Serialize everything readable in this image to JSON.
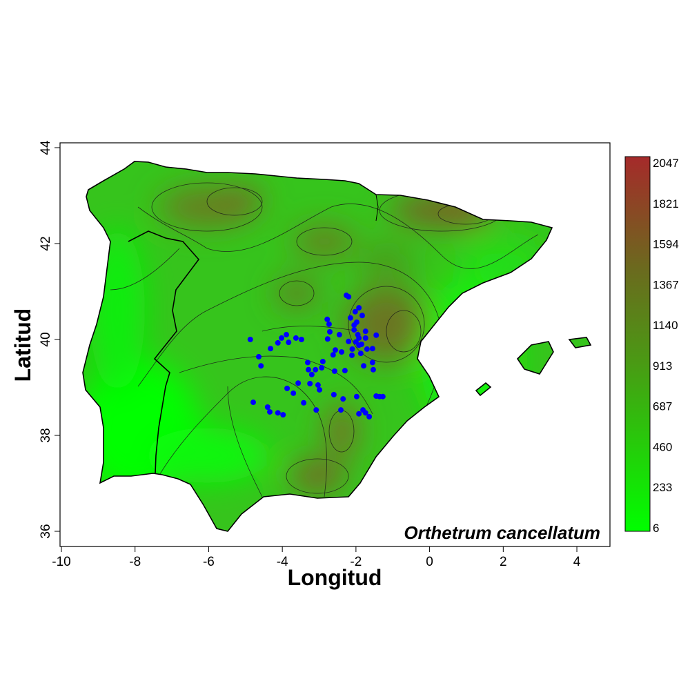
{
  "chart_data": {
    "type": "scatter",
    "title": "Orthetrum cancellatum",
    "xlabel": "Longitud",
    "ylabel": "Latitud",
    "xlim": [
      -10.05,
      4.9
    ],
    "ylim": [
      35.7,
      44.1
    ],
    "xticks": [
      -10,
      -8,
      -6,
      -4,
      -2,
      0,
      2,
      4
    ],
    "yticks": [
      36,
      38,
      40,
      42,
      44
    ],
    "grid": false,
    "background": "elevation raster of the Iberian Peninsula with contour lines",
    "point_color": "#0000ff",
    "colorbar": {
      "placement": "right",
      "low_color": "#00ff00",
      "high_color": "#a52a2a",
      "ticks": [
        2047,
        1821,
        1594,
        1367,
        1140,
        913,
        687,
        460,
        233,
        6
      ]
    },
    "contour_levels": [
      200,
      400,
      600,
      800,
      1000,
      1200,
      1400
    ],
    "points": [
      [
        -4.87,
        40.0
      ],
      [
        -4.64,
        39.64
      ],
      [
        -4.58,
        39.45
      ],
      [
        -4.32,
        39.81
      ],
      [
        -4.12,
        39.93
      ],
      [
        -4.02,
        40.03
      ],
      [
        -3.89,
        40.1
      ],
      [
        -3.83,
        39.94
      ],
      [
        -3.63,
        40.03
      ],
      [
        -3.48,
        40.0
      ],
      [
        -3.31,
        39.52
      ],
      [
        -3.29,
        39.37
      ],
      [
        -3.2,
        39.27
      ],
      [
        -3.1,
        39.37
      ],
      [
        -2.93,
        39.41
      ],
      [
        -2.9,
        39.54
      ],
      [
        -2.77,
        40.01
      ],
      [
        -2.71,
        40.16
      ],
      [
        -2.73,
        40.32
      ],
      [
        -2.78,
        40.42
      ],
      [
        -2.62,
        39.68
      ],
      [
        -2.56,
        39.78
      ],
      [
        -2.26,
        40.92
      ],
      [
        -2.2,
        40.89
      ],
      [
        -1.92,
        40.66
      ],
      [
        -2.02,
        40.58
      ],
      [
        -1.83,
        40.5
      ],
      [
        -1.98,
        40.36
      ],
      [
        -1.74,
        40.17
      ],
      [
        -1.92,
        40.03
      ],
      [
        -2.2,
        39.96
      ],
      [
        -1.92,
        39.88
      ],
      [
        -1.74,
        40.03
      ],
      [
        -1.55,
        39.81
      ],
      [
        -1.45,
        40.09
      ],
      [
        -1.87,
        39.71
      ],
      [
        -2.11,
        39.67
      ],
      [
        -2.39,
        39.74
      ],
      [
        -1.55,
        39.52
      ],
      [
        -1.53,
        39.37
      ],
      [
        -1.79,
        39.45
      ],
      [
        -2.3,
        39.35
      ],
      [
        -2.58,
        39.34
      ],
      [
        -3.25,
        39.08
      ],
      [
        -3.03,
        39.05
      ],
      [
        -2.99,
        38.95
      ],
      [
        -3.57,
        39.09
      ],
      [
        -3.7,
        38.88
      ],
      [
        -3.87,
        38.98
      ],
      [
        -4.79,
        38.69
      ],
      [
        -4.4,
        38.59
      ],
      [
        -4.34,
        38.49
      ],
      [
        -4.12,
        38.47
      ],
      [
        -3.98,
        38.43
      ],
      [
        -2.6,
        38.85
      ],
      [
        -2.35,
        38.76
      ],
      [
        -2.41,
        38.53
      ],
      [
        -1.98,
        38.81
      ],
      [
        -1.81,
        38.53
      ],
      [
        -1.74,
        38.47
      ],
      [
        -1.64,
        38.39
      ],
      [
        -1.45,
        38.82
      ],
      [
        -1.36,
        38.81
      ],
      [
        -1.27,
        38.81
      ],
      [
        -1.92,
        38.45
      ],
      [
        -3.08,
        38.53
      ],
      [
        -3.42,
        38.68
      ],
      [
        -2.05,
        40.2
      ],
      [
        -1.95,
        40.1
      ],
      [
        -2.0,
        39.95
      ],
      [
        -1.85,
        39.9
      ],
      [
        -2.1,
        39.8
      ],
      [
        -1.7,
        39.8
      ],
      [
        -2.45,
        40.1
      ],
      [
        -2.15,
        40.45
      ],
      [
        -2.05,
        40.3
      ]
    ]
  }
}
